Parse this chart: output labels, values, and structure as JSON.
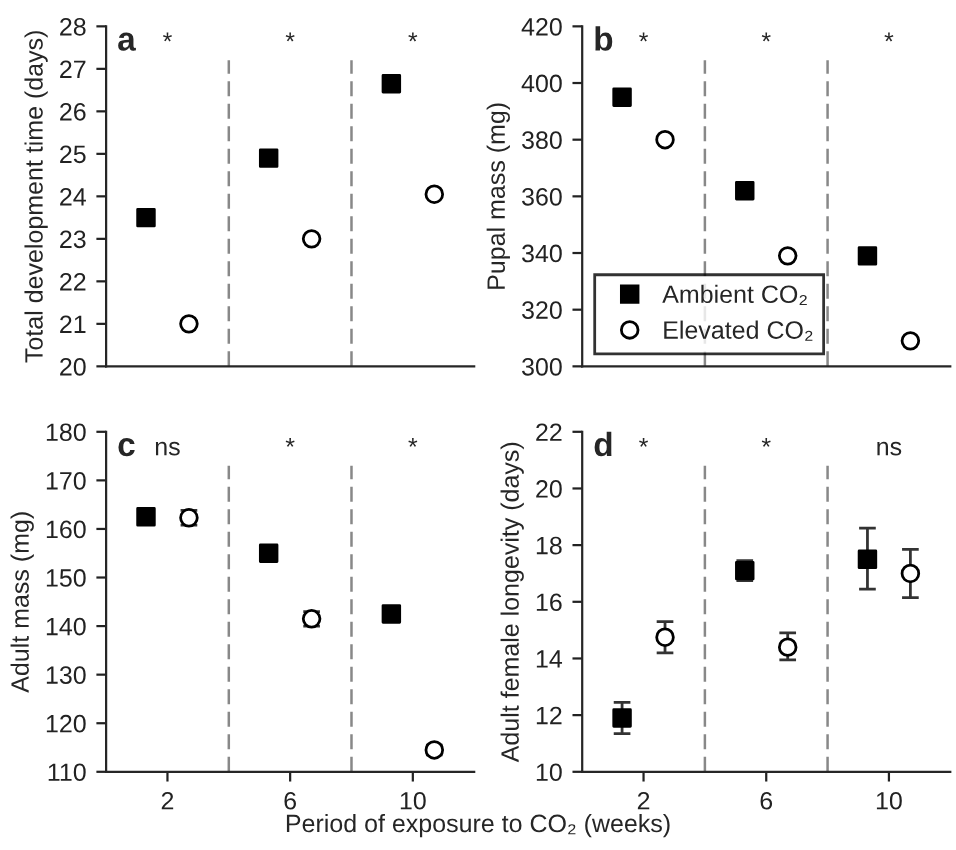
{
  "chart_data": [
    {
      "type": "scatter",
      "title": "a",
      "ylabel": "Total development time (days)",
      "xlim": [
        0,
        12
      ],
      "xticks": [
        2,
        6,
        10
      ],
      "ylim": [
        20,
        28
      ],
      "yticks": [
        20,
        21,
        22,
        23,
        24,
        25,
        26,
        27,
        28
      ],
      "tick_labels": "y",
      "grid": false,
      "legend": false,
      "series": [
        {
          "color": "#000000",
          "marker": "square",
          "x": [
            1.3,
            5.3,
            9.3
          ],
          "values": [
            23.5,
            24.9,
            26.65
          ]
        },
        {
          "color": "#ffffff",
          "marker": "circle",
          "x": [
            2.7,
            6.7,
            10.7
          ],
          "values": [
            21.0,
            23.0,
            24.05
          ]
        }
      ],
      "ref_lines": [
        {
          "axis": "x",
          "value": 4,
          "line_style": "dashed",
          "color": "#888888"
        },
        {
          "axis": "x",
          "value": 8,
          "line_style": "dashed",
          "color": "#888888"
        }
      ],
      "annotations": [
        "*",
        "*",
        "*"
      ]
    },
    {
      "type": "scatter",
      "title": "b",
      "ylabel": "Pupal mass (mg)",
      "xlim": [
        0,
        12
      ],
      "xticks": [
        2,
        6,
        10
      ],
      "ylim": [
        300,
        420
      ],
      "yticks": [
        300,
        320,
        340,
        360,
        380,
        400,
        420
      ],
      "tick_labels": "y",
      "grid": false,
      "legend": "bottom left",
      "series": [
        {
          "name": "Ambient CO₂",
          "color": "#000000",
          "marker": "square",
          "x": [
            1.3,
            5.3,
            9.3
          ],
          "values": [
            395,
            362,
            339
          ]
        },
        {
          "name": "Elevated CO₂",
          "color": "#ffffff",
          "marker": "circle",
          "x": [
            2.7,
            6.7,
            10.7
          ],
          "values": [
            380,
            339,
            309
          ]
        }
      ],
      "ref_lines": [
        {
          "axis": "x",
          "value": 4,
          "line_style": "dashed",
          "color": "#888888"
        },
        {
          "axis": "x",
          "value": 8,
          "line_style": "dashed",
          "color": "#888888"
        }
      ],
      "annotations": [
        "*",
        "*",
        "*"
      ]
    },
    {
      "type": "scatter",
      "title": "c",
      "ylabel": "Adult mass (mg)",
      "xlabel": "Period of exposure to CO₂ (weeks)",
      "xlim": [
        0,
        12
      ],
      "xticks": [
        2,
        6,
        10
      ],
      "ylim": [
        110,
        180
      ],
      "yticks": [
        110,
        120,
        130,
        140,
        150,
        160,
        170,
        180
      ],
      "grid": false,
      "legend": false,
      "series": [
        {
          "color": "#000000",
          "marker": "square",
          "x": [
            1.3,
            5.3,
            9.3
          ],
          "values": [
            162.5,
            155,
            142.5
          ],
          "errors": [
            1,
            1.5,
            1.5
          ]
        },
        {
          "color": "#ffffff",
          "marker": "circle",
          "x": [
            2.7,
            6.7,
            10.7
          ],
          "values": [
            162.3,
            141.5,
            114.5
          ],
          "errors": [
            1.5,
            1.5,
            1
          ]
        }
      ],
      "ref_lines": [
        {
          "axis": "x",
          "value": 4,
          "line_style": "dashed",
          "color": "#888888"
        },
        {
          "axis": "x",
          "value": 8,
          "line_style": "dashed",
          "color": "#888888"
        }
      ],
      "annotations": [
        "ns",
        "*",
        "*"
      ]
    },
    {
      "type": "scatter",
      "title": "d",
      "ylabel": "Adult female longevity (days)",
      "xlim": [
        0,
        12
      ],
      "xticks": [
        2,
        6,
        10
      ],
      "ylim": [
        10,
        22
      ],
      "yticks": [
        10,
        12,
        14,
        16,
        18,
        20,
        22
      ],
      "grid": false,
      "legend": false,
      "series": [
        {
          "color": "#000000",
          "marker": "square",
          "x": [
            1.3,
            5.3,
            9.3
          ],
          "values": [
            11.9,
            17.1,
            17.5
          ],
          "errors": [
            [
              11.35,
              12.45
            ],
            [
              16.75,
              17.45
            ],
            [
              16.45,
              18.6
            ]
          ]
        },
        {
          "color": "#ffffff",
          "marker": "circle",
          "x": [
            2.7,
            6.7,
            10.7
          ],
          "values": [
            14.75,
            14.4,
            17.0
          ],
          "errors": [
            [
              14.2,
              15.3
            ],
            [
              13.95,
              14.9
            ],
            [
              16.15,
              17.85
            ]
          ]
        }
      ],
      "ref_lines": [
        {
          "axis": "x",
          "value": 4,
          "line_style": "dashed",
          "color": "#888888"
        },
        {
          "axis": "x",
          "value": 8,
          "line_style": "dashed",
          "color": "#888888"
        }
      ],
      "annotations": [
        "*",
        "*",
        "ns"
      ]
    }
  ]
}
